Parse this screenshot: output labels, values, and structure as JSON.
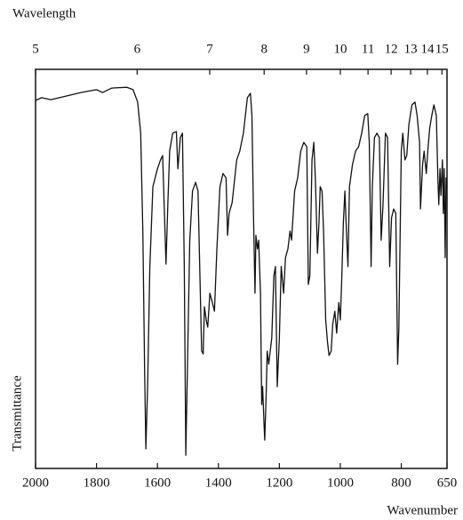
{
  "chart_data": {
    "type": "line",
    "x_label": "Wavenumber",
    "x2_label": "Wavelength",
    "y_label": "Transmittance",
    "xlim": [
      2000,
      650
    ],
    "xticks": [
      2000,
      1800,
      1600,
      1400,
      1200,
      1000,
      800,
      650
    ],
    "x2scale": "reciprocal",
    "x2ticks": [
      5,
      6,
      7,
      8,
      9,
      10,
      11,
      12,
      13,
      14,
      15
    ],
    "ylim": [
      0,
      100
    ],
    "yticks": [],
    "grid": false,
    "x": [
      2000,
      1980,
      1950,
      1900,
      1850,
      1800,
      1780,
      1750,
      1700,
      1680,
      1665,
      1655,
      1648,
      1642,
      1638,
      1632,
      1625,
      1615,
      1600,
      1590,
      1583,
      1578,
      1572,
      1566,
      1560,
      1550,
      1538,
      1533,
      1525,
      1518,
      1512,
      1507,
      1502,
      1494,
      1485,
      1475,
      1467,
      1460,
      1455,
      1450,
      1446,
      1440,
      1435,
      1428,
      1420,
      1413,
      1405,
      1395,
      1385,
      1375,
      1370,
      1365,
      1355,
      1340,
      1330,
      1318,
      1305,
      1295,
      1290,
      1285,
      1280,
      1277,
      1272,
      1268,
      1262,
      1258,
      1255,
      1250,
      1248,
      1243,
      1240,
      1235,
      1225,
      1218,
      1213,
      1207,
      1200,
      1194,
      1186,
      1180,
      1172,
      1165,
      1160,
      1150,
      1140,
      1130,
      1120,
      1110,
      1105,
      1100,
      1093,
      1087,
      1082,
      1075,
      1070,
      1066,
      1060,
      1055,
      1048,
      1042,
      1037,
      1030,
      1025,
      1018,
      1012,
      1005,
      1000,
      995,
      990,
      985,
      980,
      975,
      970,
      960,
      950,
      940,
      930,
      920,
      910,
      905,
      899,
      895,
      888,
      880,
      872,
      866,
      860,
      852,
      845,
      838,
      832,
      825,
      818,
      812,
      808,
      800,
      795,
      788,
      782,
      775,
      765,
      755,
      748,
      740,
      737,
      730,
      725,
      718,
      713,
      707,
      700,
      693,
      685,
      680,
      677,
      673,
      670,
      665,
      662,
      659,
      656,
      653,
      651
    ],
    "series": [
      {
        "color": "#111111",
        "values": [
          92.2,
          92.9,
          92.4,
          93.3,
          94.2,
          94.9,
          94.2,
          95.3,
          95.5,
          94.9,
          91.8,
          84.0,
          59.5,
          23.8,
          4.9,
          21.6,
          50.6,
          70.6,
          75.1,
          77.3,
          78.4,
          66.1,
          51.2,
          66.1,
          79.5,
          84.0,
          84.4,
          75.1,
          82.9,
          84.0,
          50.6,
          3.3,
          23.8,
          57.2,
          69.5,
          71.7,
          69.5,
          46.1,
          29.4,
          28.7,
          40.5,
          37.2,
          35.4,
          43.9,
          41.6,
          39.4,
          55.0,
          70.6,
          73.9,
          72.8,
          58.4,
          63.9,
          66.6,
          77.3,
          79.5,
          84.0,
          92.9,
          94.0,
          88.4,
          63.9,
          43.9,
          58.4,
          55.0,
          57.2,
          43.9,
          16.0,
          20.5,
          10.5,
          7.1,
          19.4,
          29.4,
          26.1,
          32.7,
          48.3,
          50.6,
          20.5,
          32.7,
          50.6,
          43.9,
          52.8,
          55.0,
          59.5,
          57.2,
          69.5,
          72.8,
          79.5,
          81.7,
          80.6,
          46.1,
          48.3,
          77.3,
          81.7,
          72.8,
          53.9,
          61.7,
          70.6,
          69.5,
          59.5,
          37.2,
          31.6,
          28.3,
          29.4,
          36.1,
          39.4,
          33.9,
          41.6,
          37.2,
          48.3,
          61.7,
          69.5,
          59.5,
          50.6,
          70.6,
          76.2,
          79.5,
          80.6,
          84.0,
          88.4,
          88.9,
          81.7,
          50.6,
          70.6,
          82.9,
          84.0,
          82.9,
          57.2,
          66.1,
          84.0,
          82.9,
          50.6,
          62.8,
          65.0,
          63.9,
          26.1,
          35.0,
          79.5,
          84.0,
          77.3,
          78.4,
          86.2,
          91.1,
          91.8,
          88.4,
          81.7,
          65.0,
          76.2,
          79.5,
          73.9,
          79.5,
          85.1,
          88.4,
          91.1,
          88.4,
          72.8,
          66.1,
          75.1,
          68.4,
          77.3,
          63.9,
          75.1,
          52.8,
          72.8,
          72.8
        ]
      }
    ]
  }
}
